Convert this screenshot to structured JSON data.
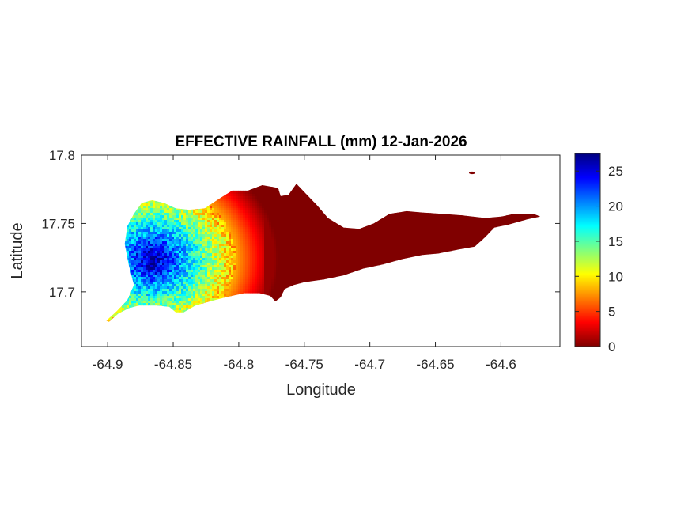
{
  "chart_data": {
    "type": "heatmap",
    "title": "EFFECTIVE RAINFALL (mm) 12-Jan-2026",
    "xlabel": "Longitude",
    "ylabel": "Latitude",
    "xlim": [
      -64.92,
      -64.555
    ],
    "ylim": [
      17.66,
      17.8
    ],
    "xticks": [
      -64.9,
      -64.85,
      -64.8,
      -64.75,
      -64.7,
      -64.65,
      -64.6
    ],
    "xtick_labels": [
      "-64.9",
      "-64.85",
      "-64.8",
      "-64.75",
      "-64.7",
      "-64.65",
      "-64.6"
    ],
    "yticks": [
      17.7,
      17.75,
      17.8
    ],
    "ytick_labels": [
      "17.7",
      "17.75",
      "17.8"
    ],
    "grid": false,
    "colormap": "jet",
    "colorbar": {
      "range": [
        0,
        27.5
      ],
      "ticks": [
        0,
        5,
        10,
        15,
        20,
        25
      ],
      "tick_labels": [
        "0",
        "5",
        "10",
        "15",
        "20",
        "25"
      ],
      "stops": [
        {
          "t": 0.0,
          "color": "#800000"
        },
        {
          "t": 0.125,
          "color": "#ff0000"
        },
        {
          "t": 0.375,
          "color": "#ffff00"
        },
        {
          "t": 0.625,
          "color": "#00ffff"
        },
        {
          "t": 0.875,
          "color": "#0000ff"
        },
        {
          "t": 1.0,
          "color": "#000080"
        }
      ]
    },
    "region_outline": [
      [
        -64.901,
        17.679
      ],
      [
        -64.893,
        17.686
      ],
      [
        -64.885,
        17.694
      ],
      [
        -64.88,
        17.705
      ],
      [
        -64.884,
        17.72
      ],
      [
        -64.887,
        17.735
      ],
      [
        -64.885,
        17.748
      ],
      [
        -64.88,
        17.757
      ],
      [
        -64.874,
        17.765
      ],
      [
        -64.866,
        17.767
      ],
      [
        -64.857,
        17.765
      ],
      [
        -64.848,
        17.761
      ],
      [
        -64.838,
        17.76
      ],
      [
        -64.826,
        17.761
      ],
      [
        -64.815,
        17.768
      ],
      [
        -64.805,
        17.774
      ],
      [
        -64.793,
        17.774
      ],
      [
        -64.782,
        17.778
      ],
      [
        -64.77,
        17.776
      ],
      [
        -64.768,
        17.77
      ],
      [
        -64.762,
        17.771
      ],
      [
        -64.756,
        17.779
      ],
      [
        -64.749,
        17.772
      ],
      [
        -64.74,
        17.763
      ],
      [
        -64.732,
        17.754
      ],
      [
        -64.72,
        17.747
      ],
      [
        -64.708,
        17.746
      ],
      [
        -64.697,
        17.75
      ],
      [
        -64.685,
        17.757
      ],
      [
        -64.672,
        17.759
      ],
      [
        -64.66,
        17.758
      ],
      [
        -64.645,
        17.757
      ],
      [
        -64.63,
        17.756
      ],
      [
        -64.612,
        17.754
      ],
      [
        -64.6,
        17.755
      ],
      [
        -64.59,
        17.757
      ],
      [
        -64.575,
        17.757
      ],
      [
        -64.57,
        17.755
      ],
      [
        -64.58,
        17.753
      ],
      [
        -64.595,
        17.749
      ],
      [
        -64.605,
        17.747
      ],
      [
        -64.612,
        17.74
      ],
      [
        -64.62,
        17.733
      ],
      [
        -64.632,
        17.731
      ],
      [
        -64.648,
        17.728
      ],
      [
        -64.66,
        17.727
      ],
      [
        -64.675,
        17.724
      ],
      [
        -64.69,
        17.72
      ],
      [
        -64.705,
        17.717
      ],
      [
        -64.72,
        17.712
      ],
      [
        -64.735,
        17.709
      ],
      [
        -64.75,
        17.707
      ],
      [
        -64.758,
        17.705
      ],
      [
        -64.765,
        17.702
      ],
      [
        -64.768,
        17.696
      ],
      [
        -64.772,
        17.693
      ],
      [
        -64.776,
        17.697
      ],
      [
        -64.784,
        17.699
      ],
      [
        -64.796,
        17.699
      ],
      [
        -64.81,
        17.696
      ],
      [
        -64.822,
        17.693
      ],
      [
        -64.833,
        17.69
      ],
      [
        -64.842,
        17.685
      ],
      [
        -64.848,
        17.685
      ],
      [
        -64.853,
        17.689
      ],
      [
        -64.863,
        17.69
      ],
      [
        -64.876,
        17.69
      ],
      [
        -64.884,
        17.688
      ],
      [
        -64.892,
        17.684
      ],
      [
        -64.899,
        17.678
      ]
    ],
    "islet": {
      "lon": -64.622,
      "lat": 17.787
    },
    "rainfall_field": {
      "max_value": 27,
      "core_center": [
        -64.866,
        17.724
      ],
      "core_radius_deg": 0.018,
      "falloff_end_lon": -64.79,
      "description_values": [
        {
          "lon": -64.866,
          "lat": 17.722,
          "value": 26
        },
        {
          "lon": -64.855,
          "lat": 17.735,
          "value": 22
        },
        {
          "lon": -64.878,
          "lat": 17.745,
          "value": 17
        },
        {
          "lon": -64.84,
          "lat": 17.745,
          "value": 12
        },
        {
          "lon": -64.83,
          "lat": 17.73,
          "value": 8
        },
        {
          "lon": -64.815,
          "lat": 17.735,
          "value": 4
        },
        {
          "lon": -64.79,
          "lat": 17.735,
          "value": 1
        },
        {
          "lon": -64.7,
          "lat": 17.735,
          "value": 0
        }
      ]
    }
  }
}
